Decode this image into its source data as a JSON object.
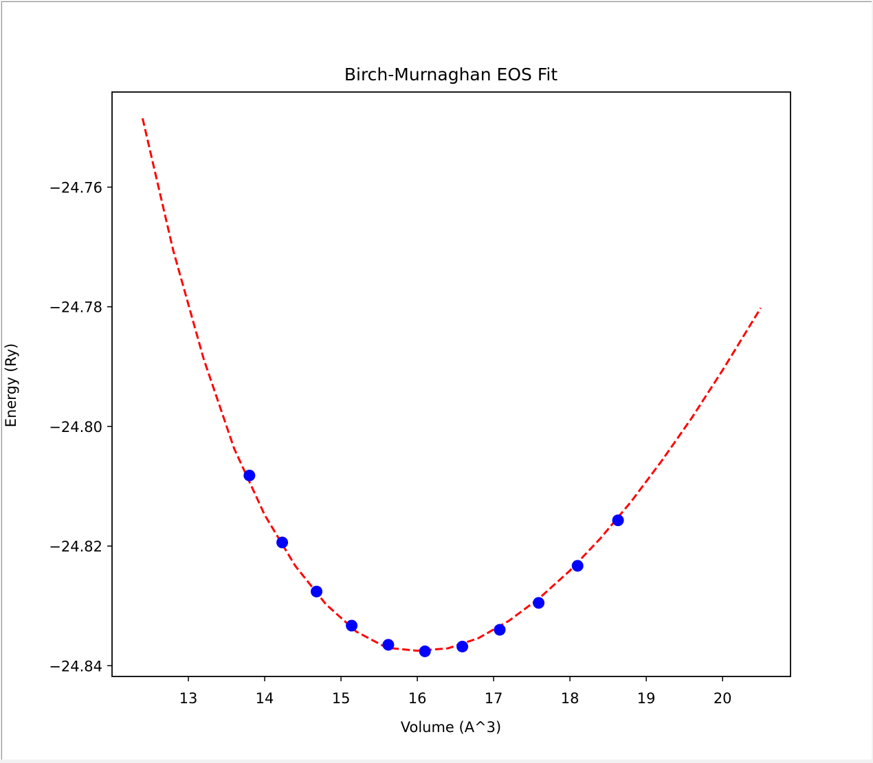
{
  "chart_data": {
    "type": "scatter",
    "title": "Birch-Murnaghan EOS Fit",
    "xlabel": "Volume (A^3)",
    "ylabel": "Energy (Ry)",
    "xlim": [
      12.0,
      20.89
    ],
    "ylim": [
      -24.8418,
      -24.7441
    ],
    "xticks": [
      13,
      14,
      15,
      16,
      17,
      18,
      19,
      20
    ],
    "xtick_labels": [
      "13",
      "14",
      "15",
      "16",
      "17",
      "18",
      "19",
      "20"
    ],
    "yticks": [
      -24.76,
      -24.78,
      -24.8,
      -24.82,
      -24.84
    ],
    "ytick_labels": [
      "−24.76",
      "−24.78",
      "−24.80",
      "−24.82",
      "−24.84"
    ],
    "grid": false,
    "series": [
      {
        "type": "scatter",
        "color": "#0000ff",
        "x": [
          13.8,
          14.23,
          14.68,
          15.14,
          15.62,
          16.1,
          16.59,
          17.08,
          17.59,
          18.1,
          18.63
        ],
        "y": [
          -24.8082,
          -24.8194,
          -24.8276,
          -24.8333,
          -24.8365,
          -24.8376,
          -24.8368,
          -24.834,
          -24.8295,
          -24.8233,
          -24.8157
        ]
      },
      {
        "type": "line",
        "style": "dashed",
        "color": "#ff0000",
        "x": [
          12.4,
          12.8,
          13.2,
          13.6,
          14.0,
          14.4,
          14.8,
          15.2,
          15.6,
          16.0,
          16.4,
          16.8,
          17.2,
          17.6,
          18.0,
          18.4,
          18.8,
          19.2,
          19.6,
          20.0,
          20.5
        ],
        "y": [
          -24.7485,
          -24.7705,
          -24.7887,
          -24.8037,
          -24.8148,
          -24.8233,
          -24.8297,
          -24.8343,
          -24.837,
          -24.8375,
          -24.8371,
          -24.8354,
          -24.8325,
          -24.8287,
          -24.8241,
          -24.8187,
          -24.8126,
          -24.8058,
          -24.7985,
          -24.7906,
          -24.7802
        ]
      }
    ]
  }
}
